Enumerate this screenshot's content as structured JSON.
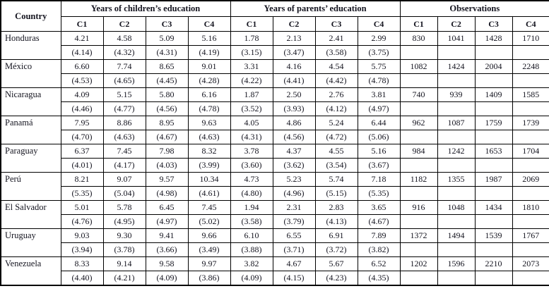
{
  "table": {
    "country_header": "Country",
    "groups": [
      {
        "label": "Years of children’s education",
        "cols": [
          "C1",
          "C2",
          "C3",
          "C4"
        ]
      },
      {
        "label": "Years of parents’ education",
        "cols": [
          "C1",
          "C2",
          "C3",
          "C4"
        ]
      },
      {
        "label": "Observations",
        "cols": [
          "C1",
          "C2",
          "C3",
          "C4"
        ]
      }
    ],
    "rows": [
      {
        "country": "Honduras",
        "children_mean": [
          "4.21",
          "4.58",
          "5.09",
          "5.16"
        ],
        "children_sd": [
          "(4.14)",
          "(4.32)",
          "(4.31)",
          "(4.19)"
        ],
        "parents_mean": [
          "1.78",
          "2.13",
          "2.41",
          "2.99"
        ],
        "parents_sd": [
          "(3.15)",
          "(3.47)",
          "(3.58)",
          "(3.75)"
        ],
        "observations": [
          "830",
          "1041",
          "1428",
          "1710"
        ]
      },
      {
        "country": "México",
        "children_mean": [
          "6.60",
          "7.74",
          "8.65",
          "9.01"
        ],
        "children_sd": [
          "(4.53)",
          "(4.65)",
          "(4.45)",
          "(4.28)"
        ],
        "parents_mean": [
          "3.31",
          "4.16",
          "4.54",
          "5.75"
        ],
        "parents_sd": [
          "(4.22)",
          "(4.41)",
          "(4.42)",
          "(4.78)"
        ],
        "observations": [
          "1082",
          "1424",
          "2004",
          "2248"
        ]
      },
      {
        "country": "Nicaragua",
        "children_mean": [
          "4.09",
          "5.15",
          "5.80",
          "6.16"
        ],
        "children_sd": [
          "(4.46)",
          "(4.77)",
          "(4.56)",
          "(4.78)"
        ],
        "parents_mean": [
          "1.87",
          "2.50",
          "2.76",
          "3.81"
        ],
        "parents_sd": [
          "(3.52)",
          "(3.93)",
          "(4.12)",
          "(4.97)"
        ],
        "observations": [
          "740",
          "939",
          "1409",
          "1585"
        ]
      },
      {
        "country": "Panamá",
        "children_mean": [
          "7.95",
          "8.86",
          "8.95",
          "9.63"
        ],
        "children_sd": [
          "(4.70)",
          "(4.63)",
          "(4.67)",
          "(4.63)"
        ],
        "parents_mean": [
          "4.05",
          "4.86",
          "5.24",
          "6.44"
        ],
        "parents_sd": [
          "(4.31)",
          "(4.56)",
          "(4.72)",
          "(5.06)"
        ],
        "observations": [
          "962",
          "1087",
          "1759",
          "1739"
        ]
      },
      {
        "country": "Paraguay",
        "children_mean": [
          "6.37",
          "7.45",
          "7.98",
          "8.32"
        ],
        "children_sd": [
          "(4.01)",
          "(4.17)",
          "(4.03)",
          "(3.99)"
        ],
        "parents_mean": [
          "3.78",
          "4.37",
          "4.55",
          "5.16"
        ],
        "parents_sd": [
          "(3.60)",
          "(3.62)",
          "(3.54)",
          "(3.67)"
        ],
        "observations": [
          "984",
          "1242",
          "1653",
          "1704"
        ]
      },
      {
        "country": "Perú",
        "children_mean": [
          "8.21",
          "9.07",
          "9.57",
          "10.34"
        ],
        "children_sd": [
          "(5.35)",
          "(5.04)",
          "(4.98)",
          "(4.61)"
        ],
        "parents_mean": [
          "4.73",
          "5.23",
          "5.74",
          "7.18"
        ],
        "parents_sd": [
          "(4.80)",
          "(4.96)",
          "(5.15)",
          "(5.35)"
        ],
        "observations": [
          "1182",
          "1355",
          "1987",
          "2069"
        ]
      },
      {
        "country": "El Salvador",
        "children_mean": [
          "5.01",
          "5.78",
          "6.45",
          "7.45"
        ],
        "children_sd": [
          "(4.76)",
          "(4.95)",
          "(4.97)",
          "(5.02)"
        ],
        "parents_mean": [
          "1.94",
          "2.31",
          "2.83",
          "3.65"
        ],
        "parents_sd": [
          "(3.58)",
          "(3.79)",
          "(4.13)",
          "(4.67)"
        ],
        "observations": [
          "916",
          "1048",
          "1434",
          "1810"
        ]
      },
      {
        "country": "Uruguay",
        "children_mean": [
          "9.03",
          "9.30",
          "9.41",
          "9.66"
        ],
        "children_sd": [
          "(3.94)",
          "(3.78)",
          "(3.66)",
          "(3.49)"
        ],
        "parents_mean": [
          "6.10",
          "6.55",
          "6.91",
          "7.89"
        ],
        "parents_sd": [
          "(3.88)",
          "(3.71)",
          "(3.72)",
          "(3.82)"
        ],
        "observations": [
          "1372",
          "1494",
          "1539",
          "1767"
        ]
      },
      {
        "country": "Venezuela",
        "children_mean": [
          "8.33",
          "9.14",
          "9.58",
          "9.97"
        ],
        "children_sd": [
          "(4.40)",
          "(4.21)",
          "(4.09)",
          "(3.86)"
        ],
        "parents_mean": [
          "3.82",
          "4.67",
          "5.67",
          "6.52"
        ],
        "parents_sd": [
          "(4.09)",
          "(4.15)",
          "(4.23)",
          "(4.35)"
        ],
        "observations": [
          "1202",
          "1596",
          "2210",
          "2073"
        ]
      }
    ]
  }
}
